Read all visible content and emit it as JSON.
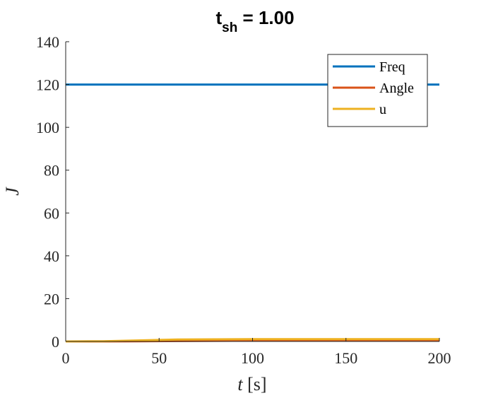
{
  "chart_data": {
    "type": "line",
    "title": "t",
    "title_subscript": "sh",
    "title_suffix": " = 1.00",
    "xlabel_var": "t",
    "xlabel_unit": " [s]",
    "ylabel": "J",
    "xlim": [
      0,
      200
    ],
    "ylim": [
      0,
      140
    ],
    "xticks": [
      0,
      50,
      100,
      150,
      200
    ],
    "yticks": [
      0,
      20,
      40,
      60,
      80,
      100,
      120,
      140
    ],
    "grid": false,
    "legend_position": "top-right",
    "series": [
      {
        "name": "Freq",
        "color": "#0072BD",
        "x": [
          0,
          20,
          40,
          60,
          80,
          100,
          120,
          140,
          160,
          180,
          200
        ],
        "y": [
          120,
          120,
          120,
          120,
          120,
          120,
          120,
          120,
          120,
          120,
          120
        ]
      },
      {
        "name": "Angle",
        "color": "#D95319",
        "x": [
          0,
          20,
          40,
          60,
          80,
          100,
          120,
          140,
          160,
          180,
          200
        ],
        "y": [
          0,
          0,
          0.1,
          0.2,
          0.3,
          0.35,
          0.4,
          0.4,
          0.4,
          0.4,
          0.4
        ]
      },
      {
        "name": "u",
        "color": "#EDB120",
        "x": [
          0,
          20,
          40,
          60,
          80,
          100,
          120,
          140,
          160,
          180,
          200
        ],
        "y": [
          0,
          0.1,
          0.5,
          0.9,
          1.0,
          1.1,
          1.1,
          1.1,
          1.1,
          1.1,
          1.1
        ]
      }
    ]
  }
}
